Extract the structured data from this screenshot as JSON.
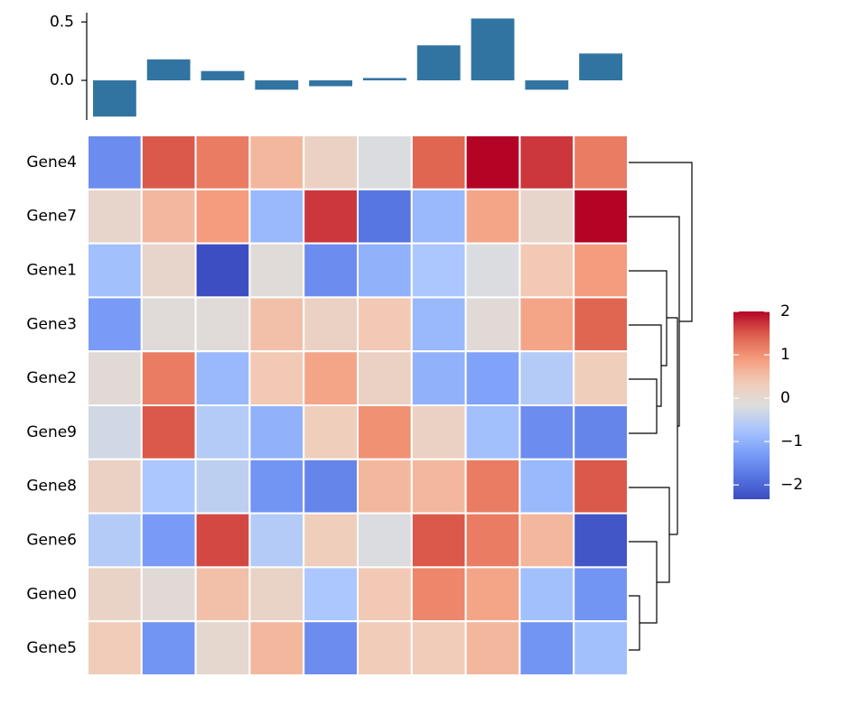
{
  "chart_data": [
    {
      "type": "bar",
      "categories": [
        null,
        null,
        null,
        null,
        null,
        null,
        null,
        null,
        null,
        null
      ],
      "values": [
        -0.31,
        0.18,
        0.08,
        -0.08,
        -0.05,
        0.02,
        0.3,
        0.53,
        -0.08,
        0.23
      ],
      "color": "#3274a1",
      "ylim": [
        -0.34,
        0.58
      ],
      "yticks": [
        {
          "value": 0,
          "label": "0.0"
        },
        0.5
      ]
    },
    {
      "type": "heatmap",
      "rows": [
        "Gene4",
        "Gene7",
        "Gene1",
        "Gene3",
        "Gene2",
        "Gene9",
        "Gene8",
        "Gene6",
        "Gene0",
        "Gene5"
      ],
      "values": [
        [
          -1.5,
          1.5,
          1.2,
          0.6,
          0.2,
          -0.2,
          1.4,
          2.0,
          1.7,
          1.2
        ],
        [
          0.1,
          0.6,
          0.9,
          -0.9,
          1.7,
          -1.8,
          -0.9,
          0.8,
          0.1,
          2.0
        ],
        [
          -0.8,
          0.1,
          -2.3,
          -0.1,
          -1.5,
          -1.0,
          -0.7,
          -0.2,
          0.4,
          0.9
        ],
        [
          -1.3,
          -0.1,
          -0.1,
          0.5,
          0.2,
          0.4,
          -0.9,
          -0.05,
          0.8,
          1.4
        ],
        [
          -0.05,
          1.2,
          -0.9,
          0.4,
          0.8,
          0.2,
          -1.0,
          -1.2,
          -0.6,
          0.3
        ],
        [
          -0.3,
          1.5,
          -0.6,
          -1.0,
          0.3,
          1.0,
          0.2,
          -0.8,
          -1.5,
          -1.6
        ],
        [
          0.2,
          -0.7,
          -0.5,
          -1.4,
          -1.6,
          0.6,
          0.6,
          1.2,
          -0.9,
          1.5
        ],
        [
          -0.6,
          -1.3,
          1.6,
          -0.6,
          0.3,
          -0.2,
          1.5,
          1.2,
          0.6,
          -2.2
        ],
        [
          0.15,
          -0.05,
          0.5,
          0.15,
          -0.7,
          0.4,
          1.1,
          0.8,
          -0.8,
          -1.4
        ],
        [
          0.35,
          -1.4,
          0.05,
          0.6,
          -1.5,
          0.35,
          0.35,
          0.6,
          -1.4,
          -0.8
        ]
      ],
      "colormap": "coolwarm",
      "colorbar_lim": [
        -2.33,
        2.0
      ],
      "colorbar_ticks": [
        2,
        1,
        0,
        {
          "value": -1,
          "label": "−1"
        },
        {
          "value": -2,
          "label": "−2"
        }
      ]
    }
  ]
}
